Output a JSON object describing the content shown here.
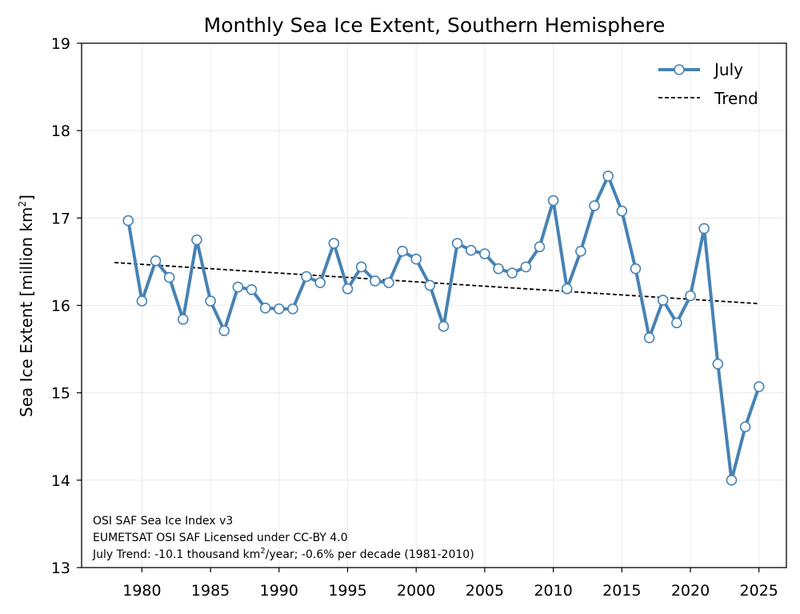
{
  "chart_data": {
    "type": "line",
    "title": "Monthly Sea Ice Extent, Southern Hemisphere",
    "ylabel": {
      "main": "Sea Ice Extent [million km",
      "sup": "2",
      "close": "]"
    },
    "xlabel": "",
    "xlim": [
      1975.6,
      2027.0
    ],
    "ylim": [
      13,
      19
    ],
    "grid": true,
    "x_ticks": [
      1980,
      1985,
      1990,
      1995,
      2000,
      2005,
      2010,
      2015,
      2020,
      2025
    ],
    "y_ticks": [
      13,
      14,
      15,
      16,
      17,
      18,
      19
    ],
    "legend_position": "top-right",
    "series": [
      {
        "name": "July",
        "color": "#4682b4",
        "marker": "circle-open",
        "x": [
          1979,
          1980,
          1981,
          1982,
          1983,
          1984,
          1985,
          1986,
          1987,
          1988,
          1989,
          1990,
          1991,
          1992,
          1993,
          1994,
          1995,
          1996,
          1997,
          1998,
          1999,
          2000,
          2001,
          2002,
          2003,
          2004,
          2005,
          2006,
          2007,
          2008,
          2009,
          2010,
          2011,
          2012,
          2013,
          2014,
          2015,
          2016,
          2017,
          2018,
          2019,
          2020,
          2021,
          2022,
          2023,
          2024,
          2025
        ],
        "values": [
          16.97,
          16.05,
          16.51,
          16.32,
          15.84,
          16.75,
          16.05,
          15.71,
          16.21,
          16.18,
          15.97,
          15.96,
          15.96,
          16.33,
          16.26,
          16.71,
          16.19,
          16.44,
          16.28,
          16.26,
          16.62,
          16.53,
          16.23,
          15.76,
          16.71,
          16.63,
          16.59,
          16.42,
          16.37,
          16.44,
          16.67,
          17.2,
          16.19,
          16.62,
          17.14,
          17.48,
          17.08,
          16.42,
          15.63,
          16.06,
          15.8,
          16.11,
          16.88,
          15.33,
          14.0,
          14.61,
          15.07
        ]
      },
      {
        "name": "Trend",
        "color": "#000000",
        "style": "dashed",
        "x": [
          1978,
          2025
        ],
        "values": [
          16.49,
          16.02
        ]
      }
    ],
    "annotations": [
      {
        "text": "OSI SAF Sea Ice Index v3"
      },
      {
        "text": "EUMETSAT OSI SAF Licensed under CC-BY 4.0"
      },
      {
        "text_before": "July Trend: -10.1 thousand km",
        "sup": "2",
        "text_after": "/year; -0.6% per decade (1981-2010)"
      }
    ]
  }
}
